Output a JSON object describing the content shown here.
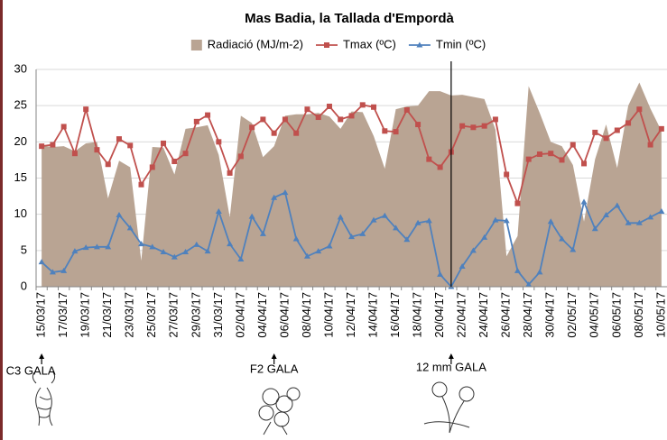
{
  "chart_data": {
    "type": "combo",
    "title": "Mas Badia, la Tallada d'Empordà",
    "categories": [
      "15/03/17",
      null,
      "17/03/17",
      null,
      "19/03/17",
      null,
      "21/03/17",
      null,
      "23/03/17",
      null,
      "25/03/17",
      null,
      "27/03/17",
      null,
      "29/03/17",
      null,
      "31/03/17",
      null,
      "02/04/17",
      null,
      "04/04/17",
      null,
      "06/04/17",
      null,
      "08/04/17",
      null,
      "10/04/17",
      null,
      "12/04/17",
      null,
      "14/04/17",
      null,
      "16/04/17",
      null,
      "18/04/17",
      null,
      "20/04/17",
      null,
      "22/04/17",
      null,
      "24/04/17",
      null,
      "26/04/17",
      null,
      "28/04/17",
      null,
      "30/04/17",
      null,
      "02/05/17",
      null,
      "04/05/17",
      null,
      "06/05/17",
      null,
      "08/05/17",
      null,
      "10/05/17"
    ],
    "series": [
      {
        "name": "Radiació (MJ/m-2)",
        "type": "area",
        "color": "#b9a493",
        "values": [
          19.5,
          19.3,
          19.4,
          18.7,
          19.8,
          20.0,
          12.2,
          17.4,
          16.5,
          3.6,
          19.3,
          19.2,
          15.5,
          21.8,
          22.0,
          22.3,
          18.2,
          9.6,
          23.6,
          22.6,
          17.9,
          19.4,
          23.6,
          23.8,
          23.8,
          24.0,
          23.5,
          21.8,
          24.2,
          24.1,
          20.8,
          16.3,
          24.5,
          24.9,
          25.0,
          27.0,
          27.0,
          26.4,
          26.5,
          26.2,
          25.9,
          21.7,
          4.2,
          7.0,
          27.7,
          24.0,
          20.0,
          19.4,
          16.8,
          9.0,
          17.6,
          22.4,
          16.4,
          25.0,
          28.2,
          24.6,
          21.5
        ]
      },
      {
        "name": "Tmax (ºC)",
        "type": "line",
        "marker": "square",
        "color": "#c0504d",
        "values": [
          19.4,
          19.6,
          22.1,
          18.4,
          24.5,
          18.9,
          16.9,
          20.4,
          19.5,
          14.1,
          16.5,
          19.8,
          17.3,
          18.4,
          22.8,
          23.7,
          20.0,
          15.7,
          18.0,
          22.0,
          23.1,
          21.2,
          23.1,
          21.2,
          24.5,
          23.4,
          24.9,
          23.1,
          23.6,
          25.1,
          24.8,
          21.5,
          21.4,
          24.4,
          22.4,
          17.6,
          16.5,
          18.6,
          22.2,
          22.0,
          22.2,
          23.1,
          15.5,
          11.5,
          17.6,
          18.3,
          18.4,
          17.5,
          19.6,
          17.0,
          21.3,
          20.5,
          21.6,
          22.6,
          24.5,
          19.6,
          21.8
        ]
      },
      {
        "name": "Tmin (ºC)",
        "type": "line",
        "marker": "triangle",
        "color": "#4f81bd",
        "values": [
          3.4,
          2.0,
          2.2,
          4.9,
          5.4,
          5.5,
          5.5,
          9.9,
          8.1,
          5.9,
          5.5,
          4.8,
          4.1,
          4.8,
          5.8,
          4.9,
          10.4,
          5.9,
          3.8,
          9.7,
          7.3,
          12.3,
          13.0,
          6.6,
          4.2,
          4.9,
          5.6,
          9.6,
          6.9,
          7.3,
          9.2,
          9.8,
          8.1,
          6.5,
          8.8,
          9.1,
          1.7,
          0,
          2.8,
          5.0,
          6.8,
          9.2,
          9.1,
          2.2,
          0.3,
          2.0,
          9.0,
          6.6,
          5.1,
          11.7,
          8.0,
          9.9,
          11.2,
          8.8,
          8.8,
          9.6,
          10.4
        ]
      }
    ],
    "ylim": [
      0,
      30
    ],
    "yticks": [
      0,
      5,
      10,
      15,
      20,
      25,
      30
    ],
    "grid": true,
    "legend": "top",
    "annotations": [
      "C3 GALA",
      "F2 GALA",
      "12 mm GALA"
    ]
  }
}
